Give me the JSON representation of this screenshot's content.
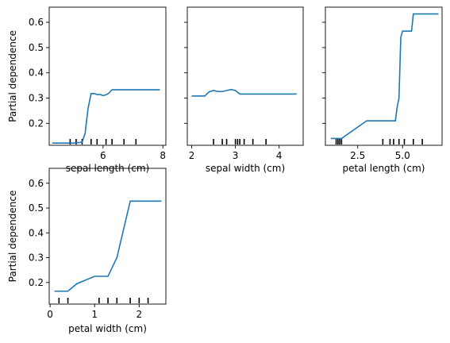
{
  "chart_data": [
    {
      "type": "line",
      "xlabel": "sepal length (cm)",
      "ylabel": "Partial dependence",
      "xlim": [
        4.2,
        8.1
      ],
      "ylim": [
        0.113,
        0.66
      ],
      "xticks": [
        6,
        8
      ],
      "xtick_labels": [
        "6",
        "8"
      ],
      "yticks": [
        0.2,
        0.3,
        0.4,
        0.5,
        0.6
      ],
      "ytick_labels": [
        "0.2",
        "0.3",
        "0.4",
        "0.5",
        "0.6"
      ],
      "show_yticklabels": true,
      "color": "#1f77b4",
      "x": [
        4.3,
        5.0,
        5.3,
        5.4,
        5.5,
        5.6,
        5.7,
        5.8,
        5.9,
        6.0,
        6.1,
        6.2,
        6.3,
        6.5,
        7.0,
        7.9
      ],
      "y": [
        0.122,
        0.122,
        0.125,
        0.16,
        0.26,
        0.318,
        0.318,
        0.314,
        0.314,
        0.31,
        0.313,
        0.32,
        0.333,
        0.333,
        0.333,
        0.333
      ],
      "rug": [
        4.9,
        5.1,
        5.3,
        5.6,
        5.8,
        6.1,
        6.3,
        6.7,
        7.1
      ]
    },
    {
      "type": "line",
      "xlabel": "sepal width (cm)",
      "ylabel": "",
      "xlim": [
        1.9,
        4.55
      ],
      "ylim": [
        0.113,
        0.66
      ],
      "xticks": [
        2,
        3,
        4
      ],
      "xtick_labels": [
        "2",
        "3",
        "4"
      ],
      "yticks": [
        0.2,
        0.3,
        0.4,
        0.5,
        0.6
      ],
      "ytick_labels": [],
      "show_yticklabels": false,
      "color": "#1f77b4",
      "x": [
        2.0,
        2.3,
        2.4,
        2.5,
        2.6,
        2.7,
        2.8,
        2.9,
        3.0,
        3.1,
        3.2,
        4.4
      ],
      "y": [
        0.308,
        0.308,
        0.325,
        0.33,
        0.326,
        0.326,
        0.33,
        0.334,
        0.33,
        0.316,
        0.316,
        0.316
      ],
      "rug": [
        2.5,
        2.7,
        2.8,
        3.0,
        3.05,
        3.1,
        3.2,
        3.4,
        3.7
      ]
    },
    {
      "type": "line",
      "xlabel": "petal length (cm)",
      "ylabel": "",
      "xlim": [
        0.7,
        7.2
      ],
      "ylim": [
        0.113,
        0.66
      ],
      "xticks": [
        2.5,
        5.0
      ],
      "xtick_labels": [
        "2.5",
        "5.0"
      ],
      "yticks": [
        0.2,
        0.3,
        0.4,
        0.5,
        0.6
      ],
      "ytick_labels": [],
      "show_yticklabels": false,
      "color": "#1f77b4",
      "x": [
        1.0,
        1.6,
        3.0,
        4.6,
        4.7,
        4.8,
        4.9,
        5.0,
        5.1,
        5.5,
        5.6,
        7.0
      ],
      "y": [
        0.14,
        0.14,
        0.21,
        0.21,
        0.265,
        0.3,
        0.54,
        0.565,
        0.565,
        0.565,
        0.633,
        0.633
      ],
      "rug": [
        1.3,
        1.4,
        1.5,
        1.6,
        3.9,
        4.3,
        4.5,
        4.8,
        5.1,
        5.6,
        6.1
      ]
    },
    {
      "type": "line",
      "xlabel": "petal width (cm)",
      "ylabel": "Partial dependence",
      "xlim": [
        -0.02,
        2.6
      ],
      "ylim": [
        0.113,
        0.66
      ],
      "xticks": [
        0,
        1,
        2
      ],
      "xtick_labels": [
        "0",
        "1",
        "2"
      ],
      "yticks": [
        0.2,
        0.3,
        0.4,
        0.5,
        0.6
      ],
      "ytick_labels": [
        "0.2",
        "0.3",
        "0.4",
        "0.5",
        "0.6"
      ],
      "show_yticklabels": true,
      "color": "#1f77b4",
      "x": [
        0.1,
        0.4,
        0.6,
        1.0,
        1.3,
        1.5,
        1.8,
        2.5
      ],
      "y": [
        0.165,
        0.165,
        0.195,
        0.225,
        0.225,
        0.3,
        0.528,
        0.528
      ],
      "rug": [
        0.2,
        0.4,
        1.1,
        1.3,
        1.5,
        1.8,
        2.0,
        2.2
      ]
    }
  ]
}
